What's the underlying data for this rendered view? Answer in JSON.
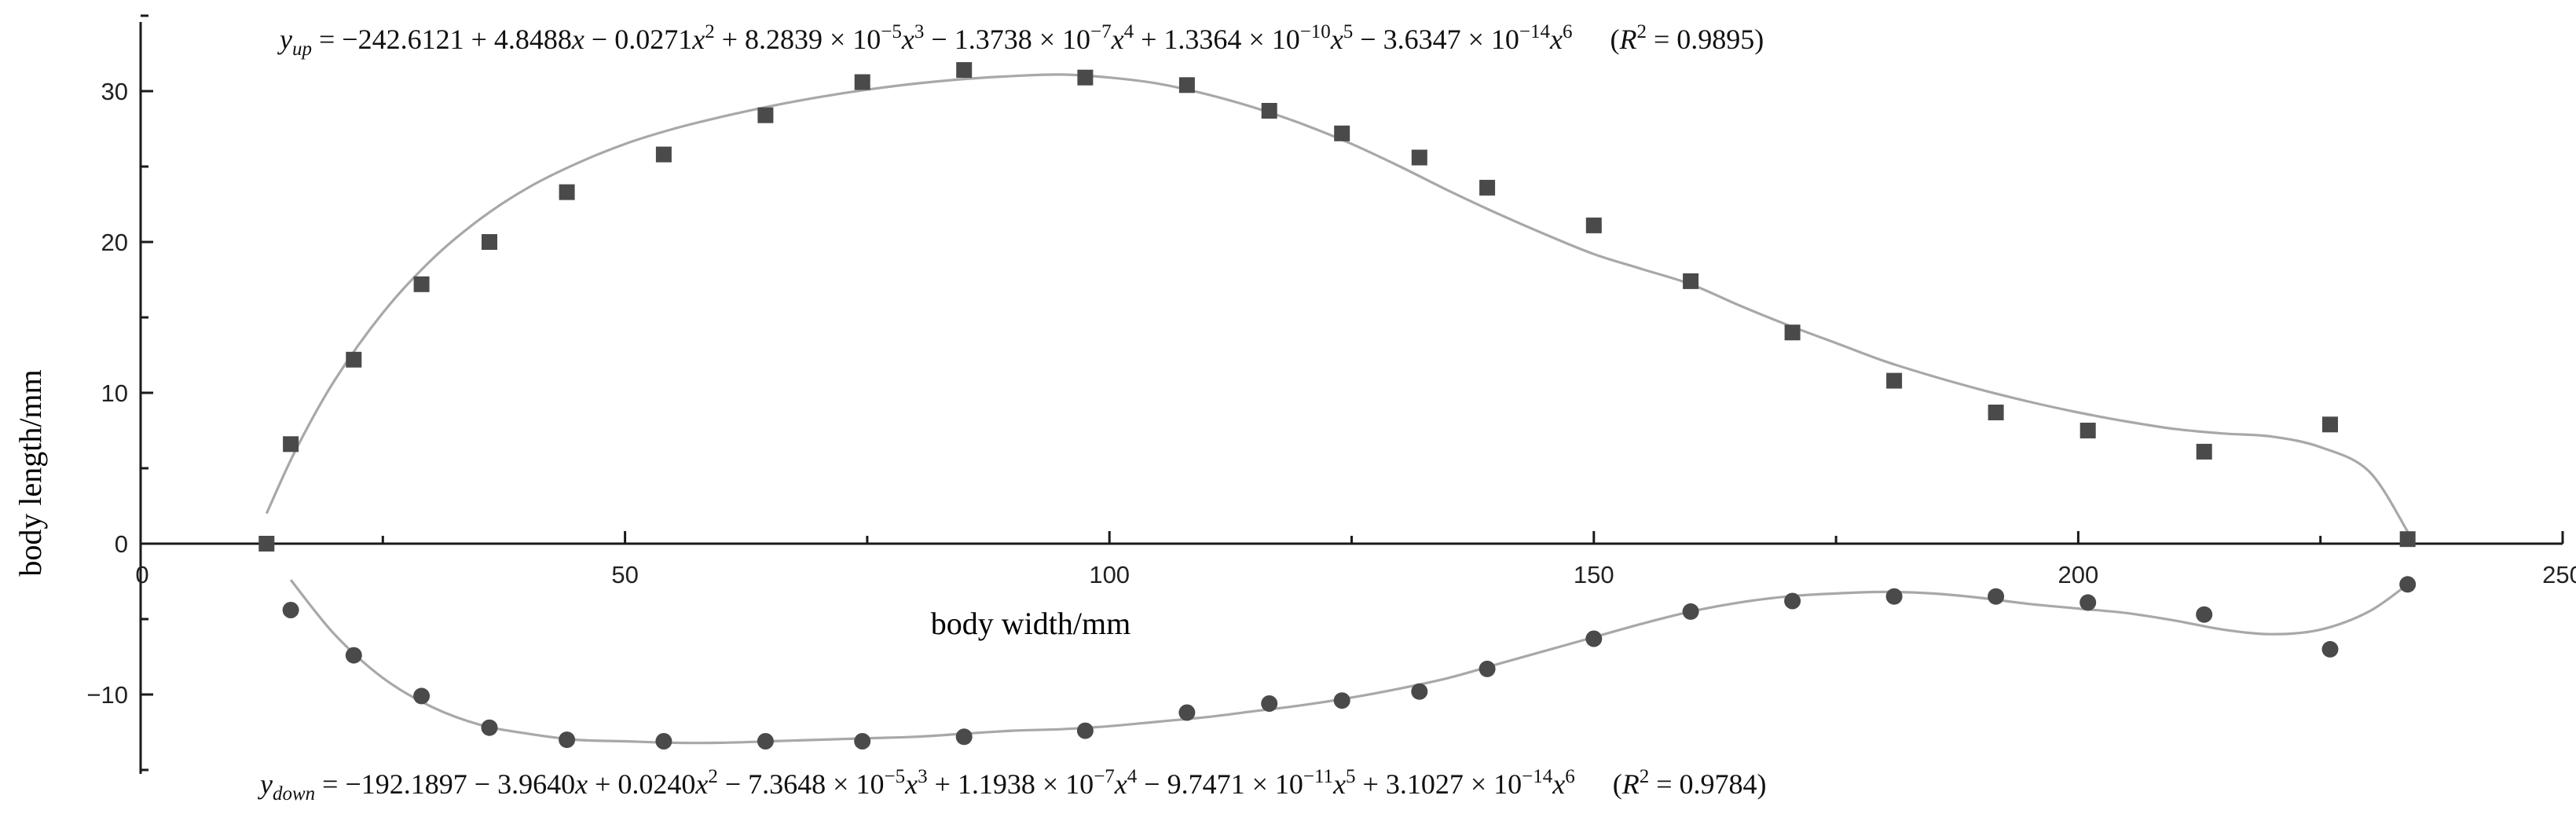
{
  "chart_data": {
    "type": "scatter",
    "xlabel": "body width/mm",
    "ylabel": "body length/mm",
    "xlim": [
      0,
      250
    ],
    "ylim": [
      -15,
      35
    ],
    "x_ticks": [
      0,
      50,
      100,
      150,
      200,
      250
    ],
    "y_ticks": [
      -10,
      0,
      10,
      20,
      30
    ],
    "grid": false,
    "series": [
      {
        "marker": "square",
        "color": "#4a4a4a",
        "x": [
          13,
          15.5,
          22,
          29,
          36,
          44,
          54,
          64.5,
          74.5,
          85,
          97.5,
          108,
          116.5,
          124,
          132,
          139,
          150,
          160,
          170.5,
          181,
          191.5,
          201,
          213,
          226,
          234
        ],
        "y": [
          0,
          6.6,
          12.2,
          17.2,
          20,
          23.3,
          25.8,
          28.4,
          30.6,
          31.4,
          30.9,
          30.4,
          28.7,
          27.2,
          25.6,
          23.6,
          21.1,
          17.4,
          14,
          10.8,
          8.7,
          7.5,
          6.1,
          7.9,
          0.3
        ]
      },
      {
        "marker": "circle",
        "color": "#4a4a4a",
        "x": [
          15.5,
          22,
          29,
          36,
          44,
          54,
          64.5,
          74.5,
          85,
          97.5,
          108,
          116.5,
          124,
          132,
          139,
          150,
          160,
          170.5,
          181,
          191.5,
          201,
          213,
          226,
          234
        ],
        "y": [
          -4.4,
          -7.4,
          -10.1,
          -12.2,
          -13,
          -13.1,
          -13.1,
          -13.1,
          -12.8,
          -12.4,
          -11.2,
          -10.6,
          -10.4,
          -9.8,
          -8.3,
          -6.3,
          -4.5,
          -3.8,
          -3.5,
          -3.5,
          -3.9,
          -4.7,
          -7,
          -2.7
        ]
      }
    ],
    "fits": {
      "up": {
        "color": "#a8a8a8",
        "x": [
          13,
          16,
          20,
          25,
          30,
          35,
          40,
          45,
          50,
          55,
          60,
          65,
          70,
          75,
          80,
          85,
          90,
          95,
          100,
          105,
          110,
          115,
          120,
          125,
          130,
          135,
          140,
          145,
          150,
          155,
          160,
          165,
          170,
          175,
          180,
          185,
          190,
          195,
          200,
          205,
          210,
          215,
          220,
          225,
          230,
          234
        ],
        "y": [
          2,
          6.2,
          10.8,
          15.3,
          18.8,
          21.5,
          23.6,
          25.2,
          26.5,
          27.5,
          28.3,
          29,
          29.6,
          30.1,
          30.5,
          30.8,
          31,
          31.1,
          30.9,
          30.5,
          29.8,
          28.9,
          27.8,
          26.5,
          25,
          23.4,
          21.9,
          20.5,
          19.2,
          18.2,
          17.2,
          15.8,
          14.5,
          13.3,
          12.1,
          11.1,
          10.2,
          9.4,
          8.7,
          8.1,
          7.6,
          7.3,
          7.1,
          6.4,
          4.8,
          0.8
        ]
      },
      "down": {
        "color": "#a8a8a8",
        "x": [
          15.5,
          20,
          25,
          30,
          35,
          40,
          45,
          50,
          55,
          60,
          65,
          70,
          75,
          80,
          85,
          90,
          95,
          100,
          105,
          110,
          115,
          120,
          125,
          130,
          135,
          140,
          145,
          150,
          155,
          160,
          165,
          170,
          175,
          180,
          185,
          190,
          195,
          200,
          205,
          210,
          215,
          220,
          225,
          230,
          234
        ],
        "y": [
          -2.4,
          -6,
          -8.9,
          -10.8,
          -12,
          -12.6,
          -13,
          -13.1,
          -13.2,
          -13.2,
          -13.1,
          -13,
          -12.9,
          -12.8,
          -12.6,
          -12.4,
          -12.3,
          -12.1,
          -11.8,
          -11.5,
          -11.1,
          -10.7,
          -10.2,
          -9.6,
          -8.9,
          -8,
          -7.1,
          -6.2,
          -5.3,
          -4.5,
          -3.9,
          -3.5,
          -3.3,
          -3.2,
          -3.3,
          -3.6,
          -4,
          -4.3,
          -4.6,
          -5.1,
          -5.7,
          -6,
          -5.7,
          -4.5,
          -2.7
        ]
      }
    },
    "equation_up": {
      "var": "y",
      "sub": "up",
      "p1": " = −242.6121 + 4.8488",
      "p2": " − 0.0271",
      "p3": " + 8.2839 × 10",
      "e3": "−5",
      "p4": " − 1.3738 × 10",
      "e4": "−7",
      "p5": " + 1.3364 × 10",
      "e5": "−10",
      "p6": " − 3.6347 × 10",
      "e6": "−14",
      "r2": " = 0.9895)"
    },
    "equation_down": {
      "var": "y",
      "sub": "down",
      "p1": " = −192.1897 − 3.9640",
      "p2": " + 0.0240",
      "p3": " − 7.3648 × 10",
      "e3": "−5",
      "p4": " + 1.1938 × 10",
      "e4": "−7",
      "p5": " − 9.7471 × 10",
      "e5": "−11",
      "p6": " + 3.1027 × 10",
      "e6": "−14",
      "r2": " = 0.9784)"
    }
  }
}
